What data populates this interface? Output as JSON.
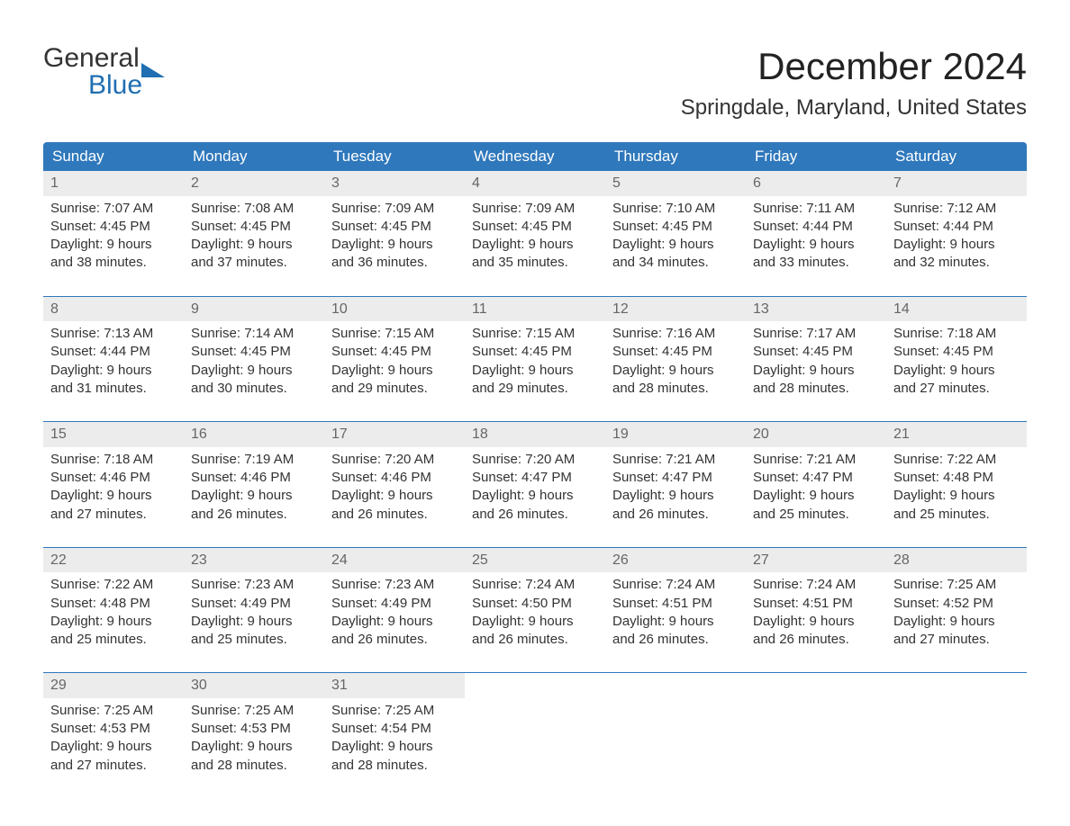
{
  "logo": {
    "top": "General",
    "bottom": "Blue"
  },
  "title": "December 2024",
  "location": "Springdale, Maryland, United States",
  "colors": {
    "header_bg": "#2f78bc",
    "header_text": "#ffffff",
    "daynum_bg": "#ececec",
    "daynum_text": "#666666",
    "body_text": "#333333",
    "logo_blue": "#1f6fb2",
    "week_border": "#2f78bc",
    "page_bg": "#ffffff"
  },
  "fonts": {
    "title_size_pt": 32,
    "location_size_pt": 18,
    "header_size_pt": 13,
    "body_size_pt": 11
  },
  "day_names": [
    "Sunday",
    "Monday",
    "Tuesday",
    "Wednesday",
    "Thursday",
    "Friday",
    "Saturday"
  ],
  "weeks": [
    [
      {
        "n": "1",
        "sr": "Sunrise: 7:07 AM",
        "ss": "Sunset: 4:45 PM",
        "d1": "Daylight: 9 hours",
        "d2": "and 38 minutes."
      },
      {
        "n": "2",
        "sr": "Sunrise: 7:08 AM",
        "ss": "Sunset: 4:45 PM",
        "d1": "Daylight: 9 hours",
        "d2": "and 37 minutes."
      },
      {
        "n": "3",
        "sr": "Sunrise: 7:09 AM",
        "ss": "Sunset: 4:45 PM",
        "d1": "Daylight: 9 hours",
        "d2": "and 36 minutes."
      },
      {
        "n": "4",
        "sr": "Sunrise: 7:09 AM",
        "ss": "Sunset: 4:45 PM",
        "d1": "Daylight: 9 hours",
        "d2": "and 35 minutes."
      },
      {
        "n": "5",
        "sr": "Sunrise: 7:10 AM",
        "ss": "Sunset: 4:45 PM",
        "d1": "Daylight: 9 hours",
        "d2": "and 34 minutes."
      },
      {
        "n": "6",
        "sr": "Sunrise: 7:11 AM",
        "ss": "Sunset: 4:44 PM",
        "d1": "Daylight: 9 hours",
        "d2": "and 33 minutes."
      },
      {
        "n": "7",
        "sr": "Sunrise: 7:12 AM",
        "ss": "Sunset: 4:44 PM",
        "d1": "Daylight: 9 hours",
        "d2": "and 32 minutes."
      }
    ],
    [
      {
        "n": "8",
        "sr": "Sunrise: 7:13 AM",
        "ss": "Sunset: 4:44 PM",
        "d1": "Daylight: 9 hours",
        "d2": "and 31 minutes."
      },
      {
        "n": "9",
        "sr": "Sunrise: 7:14 AM",
        "ss": "Sunset: 4:45 PM",
        "d1": "Daylight: 9 hours",
        "d2": "and 30 minutes."
      },
      {
        "n": "10",
        "sr": "Sunrise: 7:15 AM",
        "ss": "Sunset: 4:45 PM",
        "d1": "Daylight: 9 hours",
        "d2": "and 29 minutes."
      },
      {
        "n": "11",
        "sr": "Sunrise: 7:15 AM",
        "ss": "Sunset: 4:45 PM",
        "d1": "Daylight: 9 hours",
        "d2": "and 29 minutes."
      },
      {
        "n": "12",
        "sr": "Sunrise: 7:16 AM",
        "ss": "Sunset: 4:45 PM",
        "d1": "Daylight: 9 hours",
        "d2": "and 28 minutes."
      },
      {
        "n": "13",
        "sr": "Sunrise: 7:17 AM",
        "ss": "Sunset: 4:45 PM",
        "d1": "Daylight: 9 hours",
        "d2": "and 28 minutes."
      },
      {
        "n": "14",
        "sr": "Sunrise: 7:18 AM",
        "ss": "Sunset: 4:45 PM",
        "d1": "Daylight: 9 hours",
        "d2": "and 27 minutes."
      }
    ],
    [
      {
        "n": "15",
        "sr": "Sunrise: 7:18 AM",
        "ss": "Sunset: 4:46 PM",
        "d1": "Daylight: 9 hours",
        "d2": "and 27 minutes."
      },
      {
        "n": "16",
        "sr": "Sunrise: 7:19 AM",
        "ss": "Sunset: 4:46 PM",
        "d1": "Daylight: 9 hours",
        "d2": "and 26 minutes."
      },
      {
        "n": "17",
        "sr": "Sunrise: 7:20 AM",
        "ss": "Sunset: 4:46 PM",
        "d1": "Daylight: 9 hours",
        "d2": "and 26 minutes."
      },
      {
        "n": "18",
        "sr": "Sunrise: 7:20 AM",
        "ss": "Sunset: 4:47 PM",
        "d1": "Daylight: 9 hours",
        "d2": "and 26 minutes."
      },
      {
        "n": "19",
        "sr": "Sunrise: 7:21 AM",
        "ss": "Sunset: 4:47 PM",
        "d1": "Daylight: 9 hours",
        "d2": "and 26 minutes."
      },
      {
        "n": "20",
        "sr": "Sunrise: 7:21 AM",
        "ss": "Sunset: 4:47 PM",
        "d1": "Daylight: 9 hours",
        "d2": "and 25 minutes."
      },
      {
        "n": "21",
        "sr": "Sunrise: 7:22 AM",
        "ss": "Sunset: 4:48 PM",
        "d1": "Daylight: 9 hours",
        "d2": "and 25 minutes."
      }
    ],
    [
      {
        "n": "22",
        "sr": "Sunrise: 7:22 AM",
        "ss": "Sunset: 4:48 PM",
        "d1": "Daylight: 9 hours",
        "d2": "and 25 minutes."
      },
      {
        "n": "23",
        "sr": "Sunrise: 7:23 AM",
        "ss": "Sunset: 4:49 PM",
        "d1": "Daylight: 9 hours",
        "d2": "and 25 minutes."
      },
      {
        "n": "24",
        "sr": "Sunrise: 7:23 AM",
        "ss": "Sunset: 4:49 PM",
        "d1": "Daylight: 9 hours",
        "d2": "and 26 minutes."
      },
      {
        "n": "25",
        "sr": "Sunrise: 7:24 AM",
        "ss": "Sunset: 4:50 PM",
        "d1": "Daylight: 9 hours",
        "d2": "and 26 minutes."
      },
      {
        "n": "26",
        "sr": "Sunrise: 7:24 AM",
        "ss": "Sunset: 4:51 PM",
        "d1": "Daylight: 9 hours",
        "d2": "and 26 minutes."
      },
      {
        "n": "27",
        "sr": "Sunrise: 7:24 AM",
        "ss": "Sunset: 4:51 PM",
        "d1": "Daylight: 9 hours",
        "d2": "and 26 minutes."
      },
      {
        "n": "28",
        "sr": "Sunrise: 7:25 AM",
        "ss": "Sunset: 4:52 PM",
        "d1": "Daylight: 9 hours",
        "d2": "and 27 minutes."
      }
    ],
    [
      {
        "n": "29",
        "sr": "Sunrise: 7:25 AM",
        "ss": "Sunset: 4:53 PM",
        "d1": "Daylight: 9 hours",
        "d2": "and 27 minutes."
      },
      {
        "n": "30",
        "sr": "Sunrise: 7:25 AM",
        "ss": "Sunset: 4:53 PM",
        "d1": "Daylight: 9 hours",
        "d2": "and 28 minutes."
      },
      {
        "n": "31",
        "sr": "Sunrise: 7:25 AM",
        "ss": "Sunset: 4:54 PM",
        "d1": "Daylight: 9 hours",
        "d2": "and 28 minutes."
      },
      null,
      null,
      null,
      null
    ]
  ]
}
